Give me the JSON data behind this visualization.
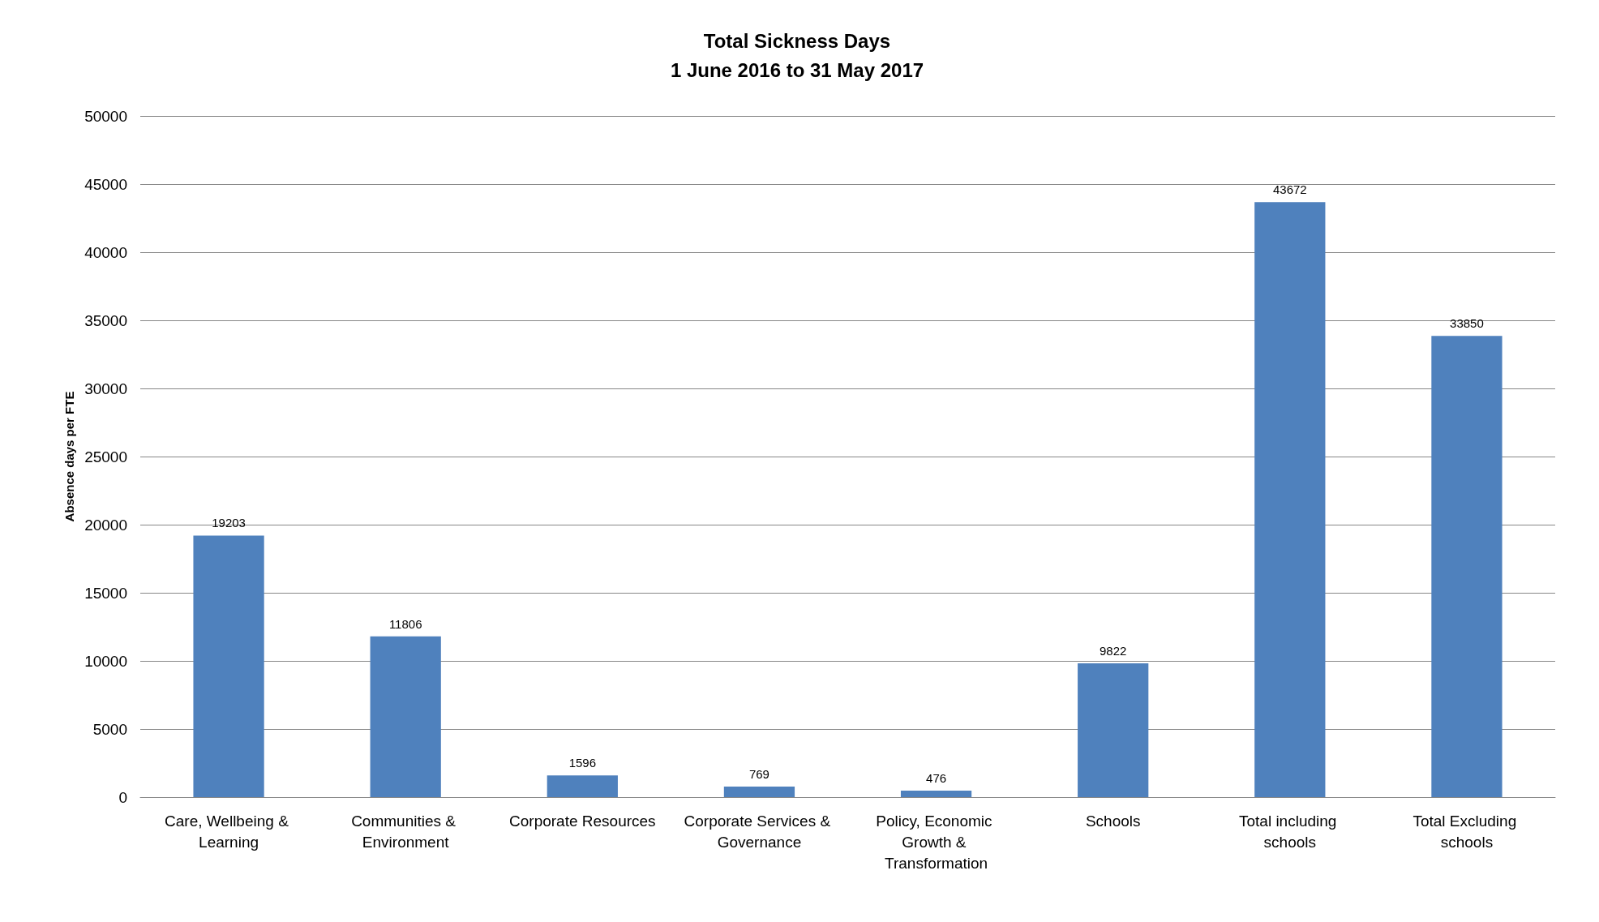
{
  "chart_data": {
    "type": "bar",
    "title": "Total Sickness Days",
    "subtitle": "1 June 2016 to 31 May 2017",
    "ylabel": "Absence days per FTE",
    "categories": [
      "Care, Wellbeing & Learning",
      "Communities & Environment",
      "Corporate Resources",
      "Corporate Services & Governance",
      "Policy, Economic Growth & Transformation",
      "Schools",
      "Total including schools",
      "Total Excluding schools"
    ],
    "values": [
      19203,
      11806,
      1596,
      769,
      476,
      9822,
      43672,
      33850
    ],
    "color": "#4f81bd",
    "ylim": [
      0,
      50000
    ],
    "yticks": [
      0,
      5000,
      10000,
      15000,
      20000,
      25000,
      30000,
      35000,
      40000,
      45000,
      50000
    ],
    "grid": "y",
    "data_labels": true
  }
}
